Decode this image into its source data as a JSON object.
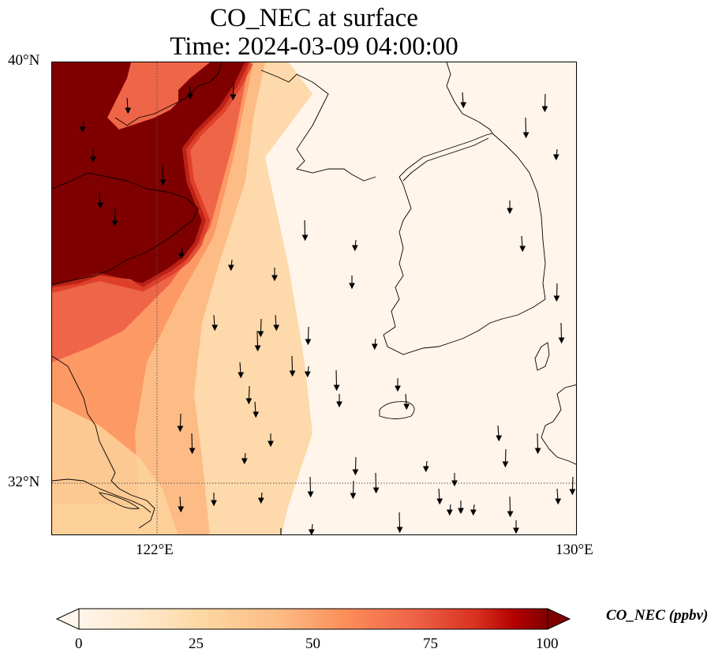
{
  "title": {
    "line1": "CO_NEC at surface",
    "line2": "Time: 2024-03-09 04:00:00"
  },
  "map": {
    "lat_range": [
      31.0,
      40.0
    ],
    "lon_range": [
      120.0,
      130.0
    ],
    "gridlines": {
      "lats": [
        32
      ],
      "lons": [
        122
      ]
    },
    "lat_ticks": [
      "40°N",
      "32°N"
    ],
    "lon_ticks": [
      "122°E",
      "130°E"
    ],
    "field": "CO_NEC",
    "overlay": "wind-vectors",
    "coastlines": true
  },
  "colorbar": {
    "label": "CO_NEC (ppbv)",
    "min": 0,
    "max": 100,
    "ticks": [
      "0",
      "25",
      "50",
      "75",
      "100"
    ],
    "extend": "both",
    "colormap": "OrRd",
    "stops": [
      "#fff5eb",
      "#fdd49e",
      "#fdbb84",
      "#fc8d59",
      "#ef6548",
      "#d7301f",
      "#b30000",
      "#7f0000"
    ]
  }
}
